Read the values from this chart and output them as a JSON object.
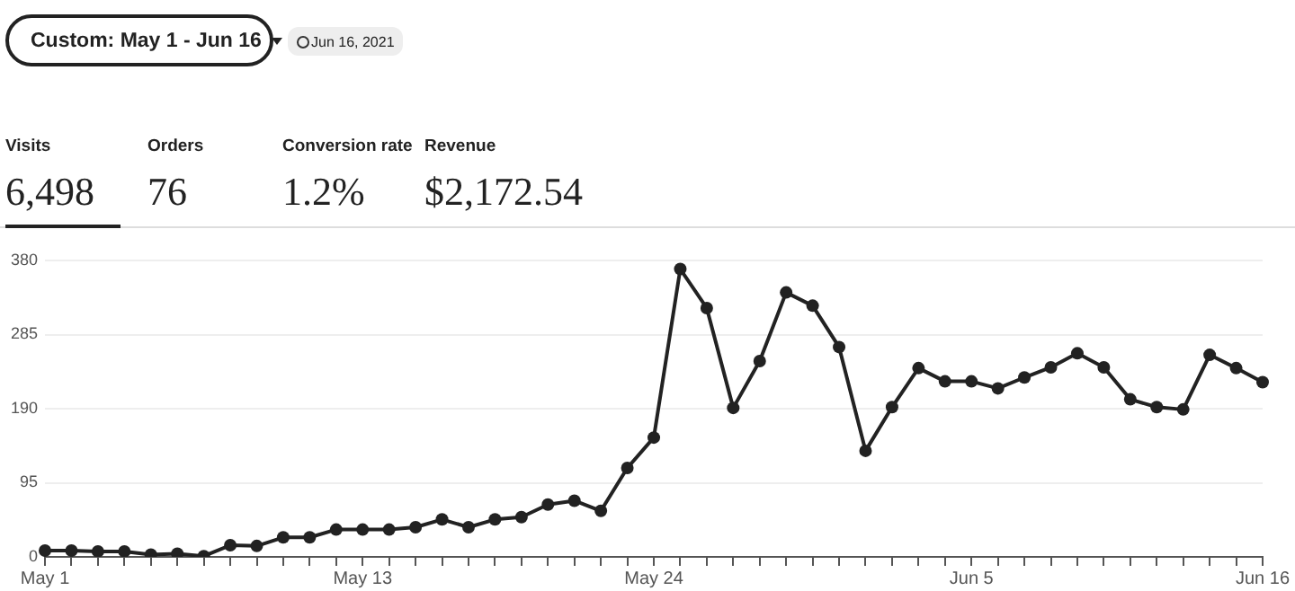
{
  "chart_data": {
    "type": "line",
    "annotations": [
      "Custom: May 1 - Jun 16",
      "Jun 16, 2021",
      "Visits",
      "6,498",
      "Orders",
      "76",
      "Conversion rate",
      "1.2%",
      "Revenue",
      "$2,172.54"
    ],
    "categories": [
      "May 1",
      null,
      null,
      null,
      null,
      null,
      null,
      null,
      null,
      null,
      null,
      null,
      "May 13",
      null,
      null,
      null,
      null,
      null,
      null,
      null,
      null,
      null,
      null,
      "May 24",
      null,
      null,
      null,
      null,
      null,
      null,
      null,
      null,
      null,
      null,
      null,
      "Jun 5",
      null,
      null,
      null,
      null,
      null,
      null,
      null,
      null,
      null,
      null,
      "Jun 16"
    ],
    "series": [
      {
        "color": "#222222",
        "values": [
          8,
          8,
          7,
          7,
          3,
          4,
          1,
          15,
          14,
          25,
          25,
          35,
          35,
          35,
          38,
          48,
          38,
          48,
          51,
          67,
          72,
          59,
          114,
          153,
          369,
          319,
          191,
          251,
          339,
          322,
          269,
          136,
          192,
          242,
          225,
          225,
          216,
          230,
          243,
          261,
          243,
          202,
          192,
          189,
          259,
          242,
          224
        ]
      }
    ],
    "ylim": [
      0,
      380
    ],
    "yticks": [
      0,
      95,
      190,
      285,
      380
    ],
    "grid": "y",
    "legend": false,
    "marker": "circle",
    "line_style": "solid"
  }
}
